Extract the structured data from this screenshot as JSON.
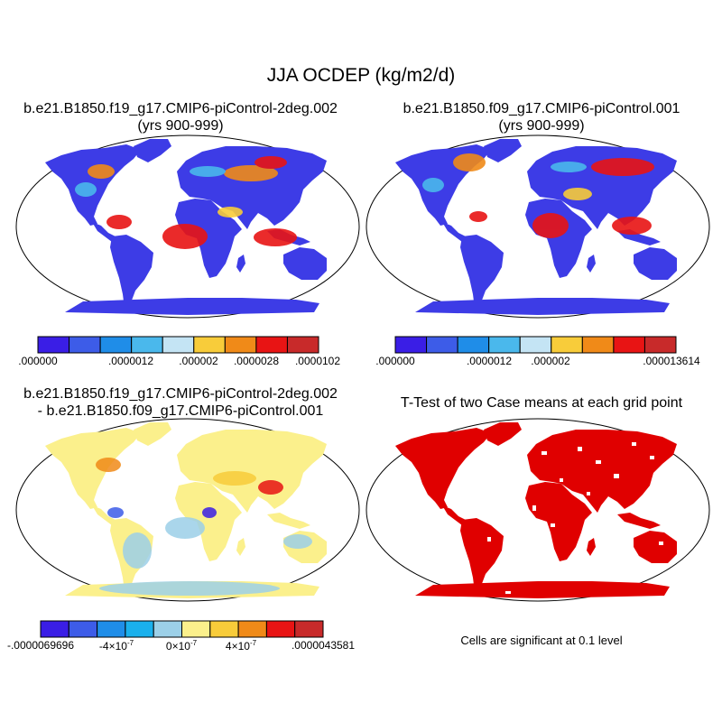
{
  "main_title": "JJA OCDEP (kg/m2/d)",
  "panels": {
    "top_left": {
      "title_line1": "b.e21.B1850.f19_g17.CMIP6-piControl-2deg.002",
      "title_line2": "(yrs 900-999)"
    },
    "top_right": {
      "title_line1": "b.e21.B1850.f09_g17.CMIP6-piControl.001",
      "title_line2": "(yrs 900-999)"
    },
    "bottom_left": {
      "title_line1": "b.e21.B1850.f19_g17.CMIP6-piControl-2deg.002",
      "title_line2": "- b.e21.B1850.f09_g17.CMIP6-piControl.001"
    },
    "bottom_right": {
      "title_line1": "T-Test of two Case means at each grid point",
      "note": "Cells are significant at 0.1 level"
    }
  },
  "colorbars": {
    "case1": {
      "colors": [
        "#3a1ee6",
        "#3d5ce8",
        "#1f8de8",
        "#4ab8ec",
        "#c4e4f4",
        "#f8cc3a",
        "#f08a18",
        "#e81414",
        "#c82a2a"
      ],
      "labels": [
        ".000000",
        ".0000012",
        ".000002",
        ".0000028",
        ".0000102"
      ]
    },
    "case2": {
      "colors": [
        "#3a1ee6",
        "#3d5ce8",
        "#1f8de8",
        "#4ab8ec",
        "#c4e4f4",
        "#f8cc3a",
        "#f08a18",
        "#e81414",
        "#c82a2a"
      ],
      "labels": [
        ".000000",
        ".0000012",
        ".000002",
        ".000013614"
      ]
    },
    "diff": {
      "colors": [
        "#3a1ee6",
        "#3d5ce8",
        "#1f8de8",
        "#1ab0ec",
        "#9cd0e8",
        "#fbf08c",
        "#f8cc3a",
        "#f08a18",
        "#e81414",
        "#c82a2a"
      ],
      "labels": [
        "-.0000069696",
        "-4×10",
        "0×10",
        "4×10",
        ".0000043581"
      ],
      "label_exponent": "-7"
    }
  },
  "map_colors": {
    "land_case1": "#3d3ce6",
    "land_case2": "#3d3ce6",
    "land_diff": "#fbf08c",
    "land_ttest": "#e00000",
    "outline": "#000000"
  }
}
